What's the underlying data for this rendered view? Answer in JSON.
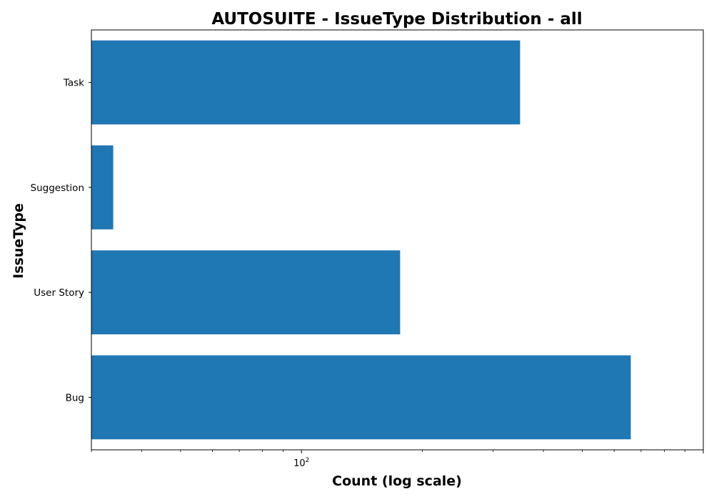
{
  "chart_data": {
    "type": "bar",
    "orientation": "horizontal",
    "title": "AUTOSUITE - IssueType Distribution - all",
    "xlabel": "Count (log scale)",
    "ylabel": "IssueType",
    "x_scale": "log",
    "xlim": [
      30,
      1000
    ],
    "x_tick_base": "10",
    "x_tick_exponent": "2",
    "categories": [
      "Bug",
      "User Story",
      "Suggestion",
      "Task"
    ],
    "values": [
      660,
      176,
      34,
      350
    ],
    "bar_color": "#1f77b4",
    "grid": false,
    "legend": "none"
  }
}
